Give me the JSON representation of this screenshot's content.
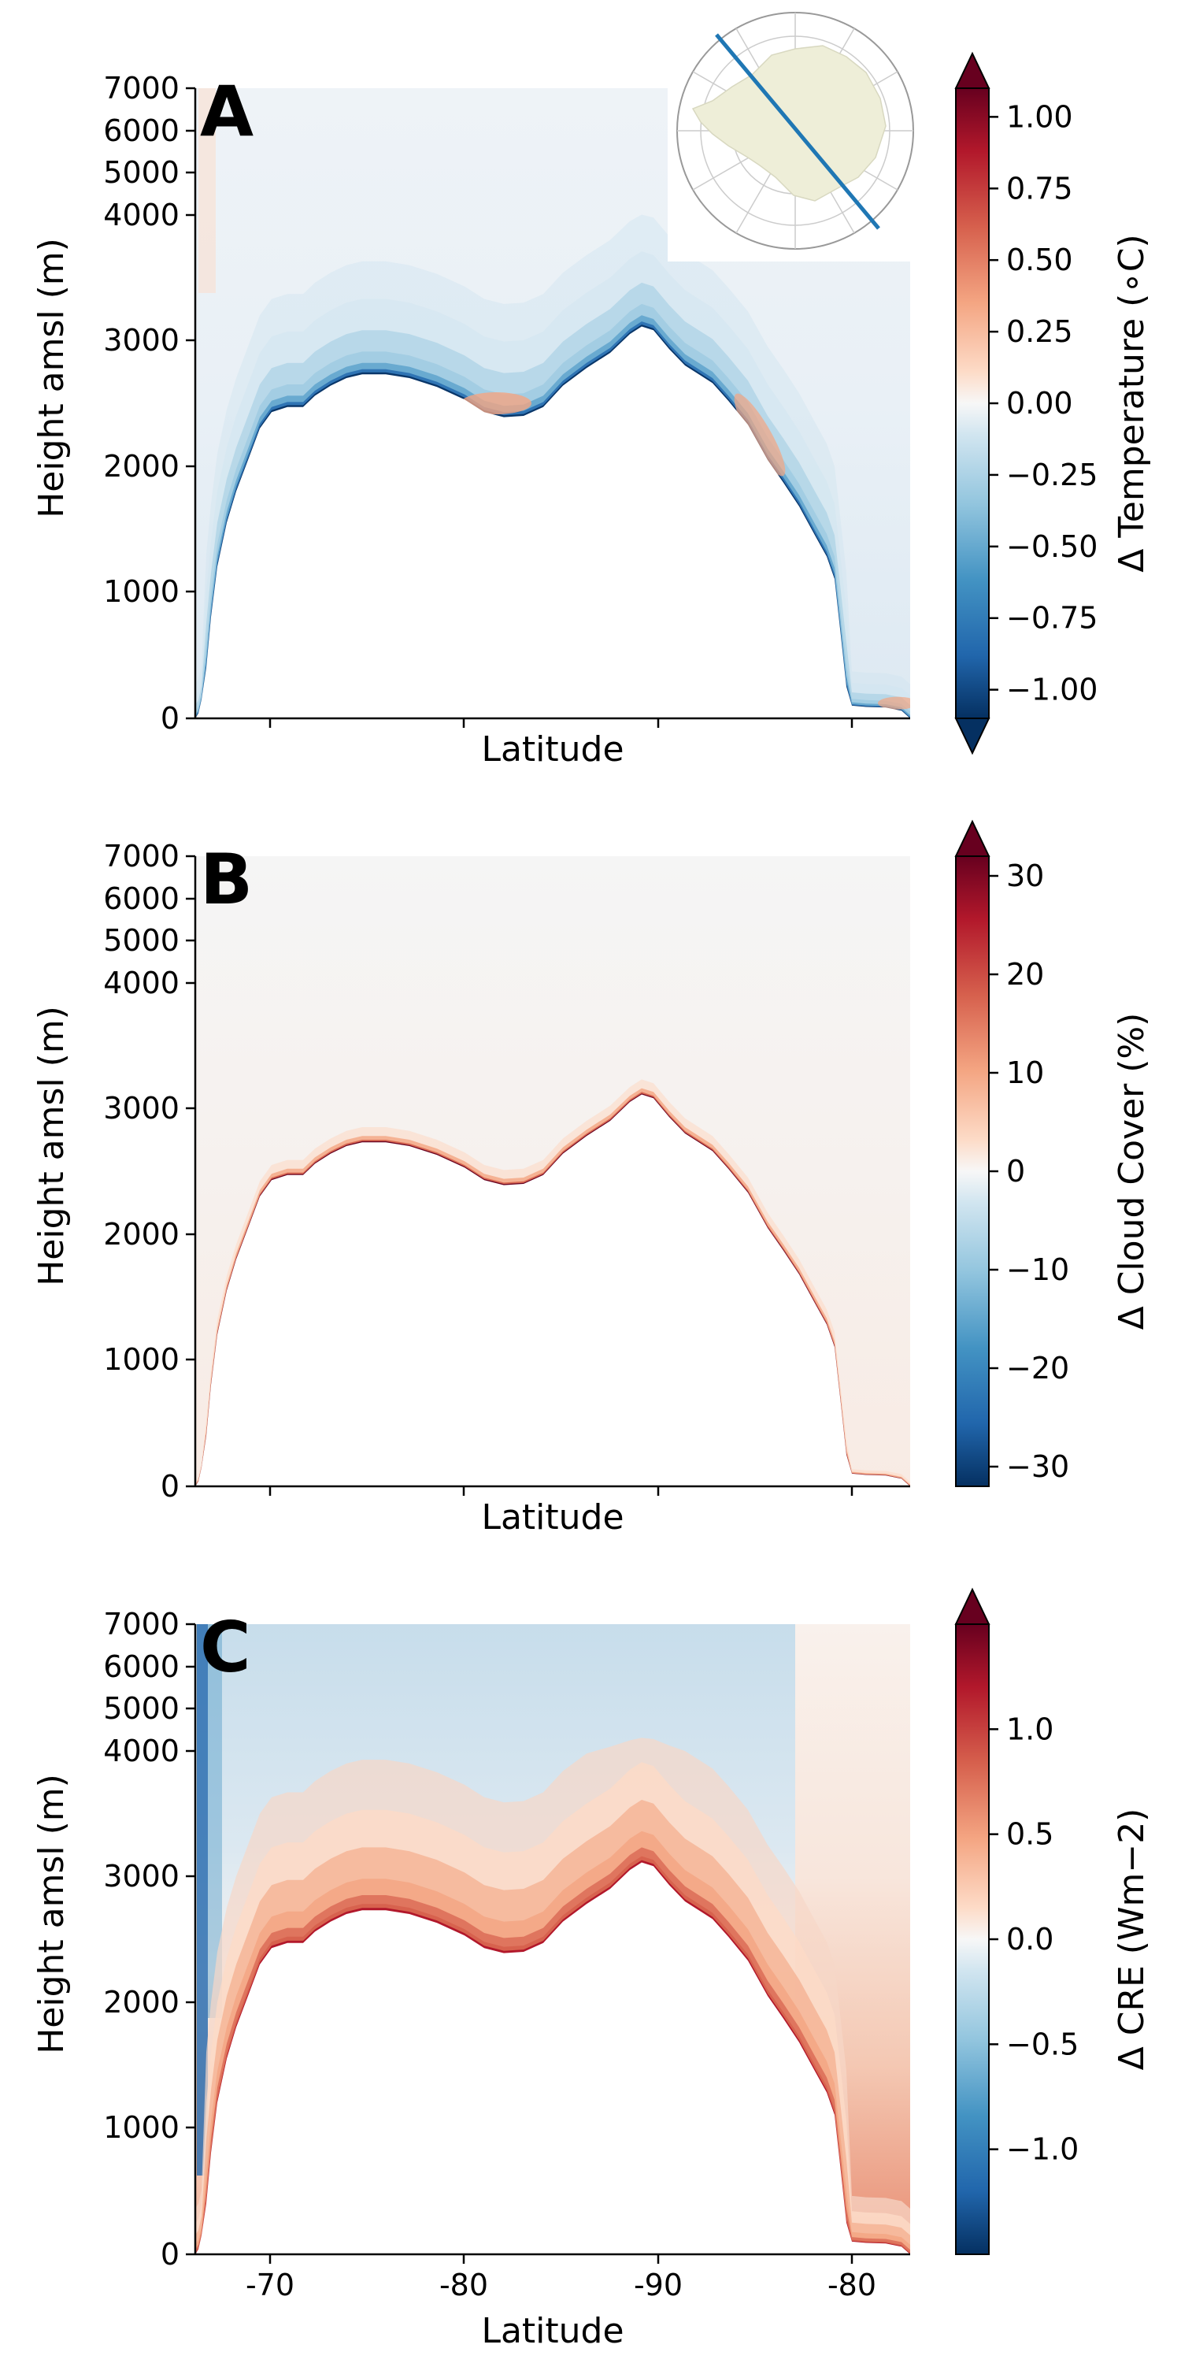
{
  "chart_data": [
    {
      "type": "heatmap",
      "panel": "A",
      "xlabel": "Latitude",
      "ylabel": "Height amsl (m)",
      "yticks": [
        "0",
        "1000",
        "2000",
        "3000",
        "4000",
        "5000",
        "6000",
        "7000"
      ],
      "colorbar_label": "Δ Temperature (∘C)",
      "colorbar_ticks": [
        "−1.00",
        "−0.75",
        "−0.50",
        "−0.25",
        "0.00",
        "0.25",
        "0.50",
        "0.75",
        "1.00"
      ],
      "colorbar_range": [
        -1.1,
        1.1
      ],
      "colorbar_extend": "both",
      "colormap": "RdBu_r",
      "inset_map": "Antarctica polar projection with blue transect line",
      "field": "negative (blue) along the ice surface and aloft; small positive (red) patches near 2500 m around the central depression and on the descending slope"
    },
    {
      "type": "heatmap",
      "panel": "B",
      "xlabel": "Latitude",
      "ylabel": "Height amsl (m)",
      "yticks": [
        "0",
        "1000",
        "2000",
        "3000",
        "4000",
        "5000",
        "6000",
        "7000"
      ],
      "colorbar_label": "Δ Cloud Cover (%)",
      "colorbar_ticks": [
        "−30",
        "−20",
        "−10",
        "0",
        "10",
        "20",
        "30"
      ],
      "colorbar_range": [
        -32,
        32
      ],
      "colorbar_extend": "max",
      "colormap": "RdBu_r",
      "field": "strong positive (dark red) thin layer just above the ice surface; near zero elsewhere"
    },
    {
      "type": "heatmap",
      "panel": "C",
      "xlabel": "Latitude",
      "ylabel": "Height amsl (m)",
      "xticks": [
        "-70",
        "-80",
        "-90",
        "-80"
      ],
      "yticks": [
        "0",
        "1000",
        "2000",
        "3000",
        "4000",
        "5000",
        "6000",
        "7000"
      ],
      "colorbar_label": "Δ CRE (Wm−2)",
      "colorbar_ticks": [
        "−1.0",
        "−0.5",
        "0.0",
        "0.5",
        "1.0"
      ],
      "colorbar_range": [
        -1.5,
        1.5
      ],
      "colorbar_extend": "max",
      "colormap": "RdBu_r",
      "field": "positive (red) near the surface, increasing toward the surface; negative (blue) aloft; strong negative column at left edge"
    }
  ],
  "colors": {
    "deep_blue": "#053061",
    "blue": "#2166ac",
    "mid_blue": "#4393c3",
    "light_blue": "#92c5de",
    "pale_blue": "#d1e5f0",
    "neutral": "#f7f7f7",
    "pale_red": "#fddbc7",
    "light_red": "#f4a582",
    "mid_red": "#d6604d",
    "red": "#b2182b",
    "deep_red": "#67001f",
    "land": "#eeeed8",
    "transect": "#1f77b4"
  }
}
